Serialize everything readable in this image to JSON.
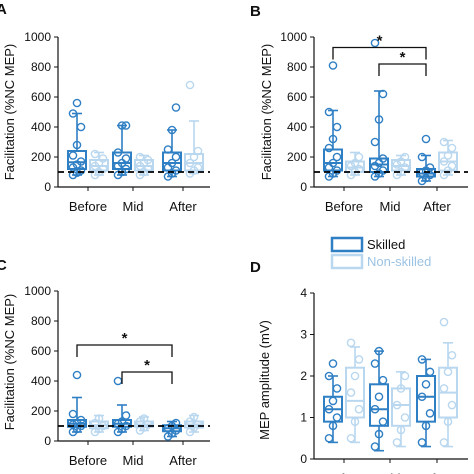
{
  "colors": {
    "skilled": "#2f7fc4",
    "nonskilled": "#b9d7ef",
    "axis": "#111111",
    "baseline": "#000000"
  },
  "legend": [
    {
      "label": "Skilled",
      "series": "skilled"
    },
    {
      "label": "Non-skilled",
      "series": "nonskilled"
    }
  ],
  "panels": {
    "A": {
      "letter": "A",
      "ylabel": "Facilitation (%NC MEP)"
    },
    "B": {
      "letter": "B",
      "ylabel": "Facilitation (%NC MEP)"
    },
    "C": {
      "letter": "C",
      "ylabel": "Facilitation (%NC MEP)"
    },
    "D": {
      "letter": "D",
      "ylabel": "MEP amplitude (mV)"
    }
  },
  "chart_data": [
    {
      "panel": "A",
      "type": "box",
      "categories": [
        "Before",
        "Mid",
        "After"
      ],
      "ylabel": "Facilitation (%NC MEP)",
      "ylim": [
        0,
        1000
      ],
      "yticks": [
        0,
        200,
        400,
        600,
        800,
        1000
      ],
      "reference_line": 100,
      "series": [
        {
          "name": "Skilled",
          "color": "skilled",
          "boxes": [
            {
              "q1": 120,
              "median": 165,
              "q3": 240,
              "whisker_low": 80,
              "whisker_high": 490,
              "points": [
                80,
                95,
                110,
                130,
                150,
                170,
                210,
                280,
                400,
                490,
                560
              ]
            },
            {
              "q1": 120,
              "median": 160,
              "q3": 230,
              "whisker_low": 80,
              "whisker_high": 410,
              "points": [
                80,
                100,
                120,
                140,
                160,
                190,
                230,
                410,
                410
              ]
            },
            {
              "q1": 110,
              "median": 160,
              "q3": 230,
              "whisker_low": 70,
              "whisker_high": 380,
              "points": [
                70,
                90,
                110,
                130,
                160,
                200,
                250,
                380,
                530
              ]
            }
          ]
        },
        {
          "name": "Non-skilled",
          "color": "nonskilled",
          "boxes": [
            {
              "q1": 110,
              "median": 140,
              "q3": 180,
              "whisker_low": 80,
              "whisker_high": 230,
              "points": [
                80,
                100,
                120,
                140,
                160,
                190,
                220
              ]
            },
            {
              "q1": 110,
              "median": 140,
              "q3": 180,
              "whisker_low": 80,
              "whisker_high": 210,
              "points": [
                80,
                100,
                120,
                140,
                160,
                180,
                200
              ]
            },
            {
              "q1": 110,
              "median": 160,
              "q3": 220,
              "whisker_low": 90,
              "whisker_high": 440,
              "points": [
                90,
                110,
                130,
                160,
                200,
                240,
                680
              ]
            }
          ]
        }
      ]
    },
    {
      "panel": "B",
      "type": "box",
      "categories": [
        "Before",
        "Mid",
        "After"
      ],
      "ylabel": "Facilitation (%NC MEP)",
      "ylim": [
        0,
        1000
      ],
      "yticks": [
        0,
        200,
        400,
        600,
        800,
        1000
      ],
      "reference_line": 100,
      "series": [
        {
          "name": "Skilled",
          "color": "skilled",
          "boxes": [
            {
              "q1": 110,
              "median": 160,
              "q3": 250,
              "whisker_low": 70,
              "whisker_high": 510,
              "points": [
                70,
                90,
                110,
                130,
                160,
                200,
                260,
                320,
                400,
                500,
                810
              ]
            },
            {
              "q1": 100,
              "median": 150,
              "q3": 190,
              "whisker_low": 70,
              "whisker_high": 640,
              "points": [
                70,
                90,
                110,
                140,
                160,
                190,
                300,
                450,
                620,
                960
              ]
            },
            {
              "q1": 70,
              "median": 90,
              "q3": 120,
              "whisker_low": 40,
              "whisker_high": 210,
              "points": [
                40,
                60,
                80,
                95,
                110,
                130,
                200,
                320
              ]
            }
          ]
        },
        {
          "name": "Non-skilled",
          "color": "nonskilled",
          "boxes": [
            {
              "q1": 100,
              "median": 130,
              "q3": 170,
              "whisker_low": 80,
              "whisker_high": 230,
              "points": [
                80,
                100,
                120,
                140,
                160,
                200
              ]
            },
            {
              "q1": 110,
              "median": 140,
              "q3": 180,
              "whisker_low": 80,
              "whisker_high": 210,
              "points": [
                80,
                100,
                130,
                150,
                170,
                200
              ]
            },
            {
              "q1": 110,
              "median": 170,
              "q3": 230,
              "whisker_low": 80,
              "whisker_high": 310,
              "points": [
                80,
                110,
                140,
                170,
                210,
                260,
                300
              ]
            }
          ]
        }
      ],
      "annotations": [
        {
          "from": 0,
          "to": 2,
          "level": 930,
          "text": "*"
        },
        {
          "from": 1,
          "to": 2,
          "level": 820,
          "text": "*"
        }
      ]
    },
    {
      "panel": "C",
      "type": "box",
      "categories": [
        "Before",
        "Mid",
        "After"
      ],
      "ylabel": "Facilitation (%NC MEP)",
      "ylim": [
        0,
        1000
      ],
      "yticks": [
        0,
        200,
        400,
        600,
        800,
        1000
      ],
      "reference_line": 100,
      "series": [
        {
          "name": "Skilled",
          "color": "skilled",
          "boxes": [
            {
              "q1": 95,
              "median": 115,
              "q3": 140,
              "whisker_low": 60,
              "whisker_high": 290,
              "points": [
                60,
                80,
                100,
                110,
                120,
                140,
                180,
                440
              ]
            },
            {
              "q1": 95,
              "median": 115,
              "q3": 140,
              "whisker_low": 60,
              "whisker_high": 240,
              "points": [
                60,
                80,
                100,
                115,
                130,
                170,
                400
              ]
            },
            {
              "q1": 65,
              "median": 85,
              "q3": 105,
              "whisker_low": 30,
              "whisker_high": 130,
              "points": [
                30,
                50,
                70,
                85,
                100,
                120
              ]
            }
          ]
        },
        {
          "name": "Non-skilled",
          "color": "nonskilled",
          "boxes": [
            {
              "q1": 85,
              "median": 105,
              "q3": 130,
              "whisker_low": 60,
              "whisker_high": 170,
              "points": [
                60,
                80,
                100,
                120,
                150
              ]
            },
            {
              "q1": 95,
              "median": 110,
              "q3": 130,
              "whisker_low": 70,
              "whisker_high": 160,
              "points": [
                70,
                90,
                110,
                130,
                150
              ]
            },
            {
              "q1": 90,
              "median": 110,
              "q3": 130,
              "whisker_low": 60,
              "whisker_high": 170,
              "points": [
                60,
                90,
                110,
                130,
                160
              ]
            }
          ]
        }
      ],
      "annotations": [
        {
          "from": 0,
          "to": 2,
          "level": 640,
          "text": "*"
        },
        {
          "from": 1,
          "to": 2,
          "level": 460,
          "text": "*"
        }
      ]
    },
    {
      "panel": "D",
      "type": "box",
      "categories": [
        "Before",
        "Mid",
        "After"
      ],
      "ylabel": "MEP amplitude (mV)",
      "ylim": [
        0,
        4
      ],
      "yticks": [
        0,
        1,
        2,
        3,
        4
      ],
      "series": [
        {
          "name": "Skilled",
          "color": "skilled",
          "boxes": [
            {
              "q1": 0.9,
              "median": 1.2,
              "q3": 1.5,
              "whisker_low": 0.4,
              "whisker_high": 2.0,
              "points": [
                0.5,
                0.8,
                1.0,
                1.2,
                1.4,
                1.7,
                2.0,
                2.3
              ]
            },
            {
              "q1": 0.8,
              "median": 1.2,
              "q3": 1.8,
              "whisker_low": 0.2,
              "whisker_high": 2.6,
              "points": [
                0.3,
                0.6,
                0.9,
                1.2,
                1.5,
                1.9,
                2.3,
                2.6
              ]
            },
            {
              "q1": 0.9,
              "median": 1.5,
              "q3": 2.0,
              "whisker_low": 0.3,
              "whisker_high": 2.4,
              "points": [
                0.4,
                0.8,
                1.1,
                1.5,
                1.8,
                2.1,
                2.4
              ]
            }
          ]
        },
        {
          "name": "Non-skilled",
          "color": "nonskilled",
          "boxes": [
            {
              "q1": 1.0,
              "median": 1.4,
              "q3": 2.2,
              "whisker_low": 0.4,
              "whisker_high": 2.7,
              "points": [
                0.5,
                0.9,
                1.2,
                1.6,
                2.0,
                2.4,
                2.8
              ]
            },
            {
              "q1": 0.8,
              "median": 1.3,
              "q3": 1.7,
              "whisker_low": 0.3,
              "whisker_high": 2.1,
              "points": [
                0.4,
                0.7,
                1.0,
                1.3,
                1.7,
                2.0
              ]
            },
            {
              "q1": 1.0,
              "median": 1.6,
              "q3": 2.2,
              "whisker_low": 0.3,
              "whisker_high": 2.8,
              "points": [
                0.4,
                0.9,
                1.3,
                1.7,
                2.1,
                2.5,
                3.3
              ]
            }
          ]
        }
      ]
    }
  ]
}
